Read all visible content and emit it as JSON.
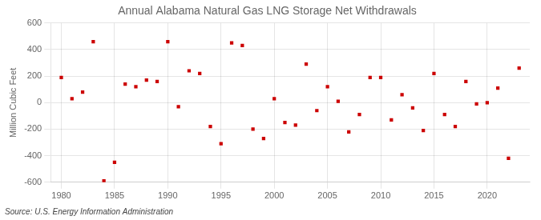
{
  "chart_data": {
    "type": "scatter",
    "title": "Annual Alabama Natural Gas LNG Storage Net Withdrawals",
    "ylabel": "Million Cubic Feet",
    "annotation": "Source: U.S. Energy Information Administration",
    "x": [
      1980,
      1981,
      1982,
      1983,
      1984,
      1985,
      1986,
      1987,
      1988,
      1989,
      1990,
      1991,
      1992,
      1993,
      1994,
      1995,
      1996,
      1997,
      1998,
      1999,
      2000,
      2001,
      2002,
      2003,
      2004,
      2005,
      2006,
      2007,
      2008,
      2009,
      2010,
      2011,
      2012,
      2013,
      2014,
      2015,
      2016,
      2017,
      2018,
      2019,
      2020,
      2021,
      2022,
      2023
    ],
    "values": [
      190,
      30,
      80,
      460,
      -590,
      -450,
      140,
      120,
      170,
      160,
      460,
      -30,
      240,
      220,
      -180,
      -310,
      450,
      430,
      -200,
      -270,
      30,
      -150,
      -170,
      290,
      -60,
      120,
      10,
      -220,
      -90,
      190,
      190,
      -130,
      60,
      -40,
      -210,
      220,
      -90,
      -180,
      160,
      -10,
      0,
      110,
      -420,
      260
    ],
    "color": "#cc0000",
    "marker": "square",
    "xlim": [
      1979,
      2024
    ],
    "ylim": [
      -600,
      600
    ],
    "xticks": [
      1980,
      1985,
      1990,
      1995,
      2000,
      2005,
      2010,
      2015,
      2020
    ],
    "yticks": [
      -600,
      -400,
      -200,
      0,
      200,
      400,
      600
    ],
    "grid": true
  }
}
